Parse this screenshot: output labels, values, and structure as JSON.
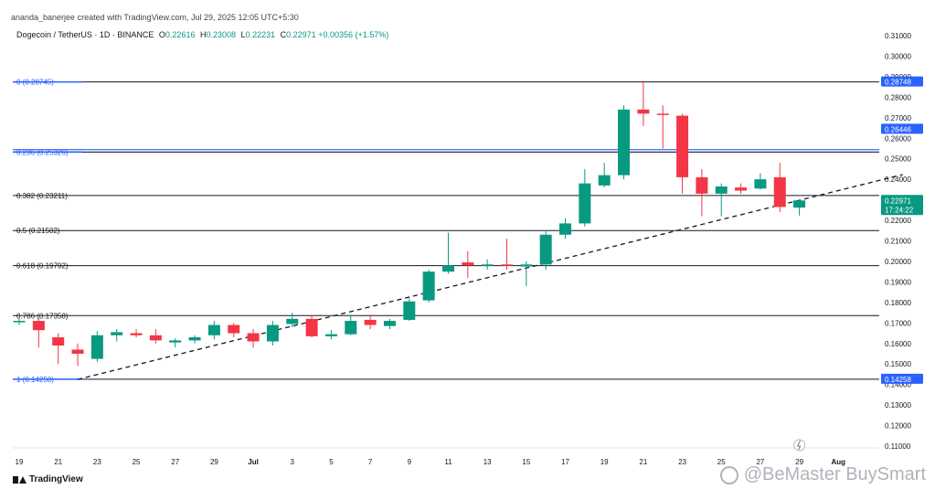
{
  "header": {
    "created_by": "ananda_banerjee created with TradingView.com, Jul 29, 2025 12:05 UTC+5:30"
  },
  "symbol": {
    "name": "Dogecoin / TetherUS · 1D · BINANCE",
    "open_label": "O",
    "open": "0.22616",
    "high_label": "H",
    "high": "0.23008",
    "low_label": "L",
    "low": "0.22231",
    "close_label": "C",
    "close": "0.22971",
    "change": "+0.00356 (+1.57%)"
  },
  "footer": {
    "brand": "TradingView",
    "watermark": "@BeMaster BuySmart"
  },
  "colors": {
    "up": "#089981",
    "down": "#f23645",
    "fib": "#131722",
    "fib_label_blue": "#2962ff"
  },
  "chart_data": {
    "type": "candlestick",
    "title": "Dogecoin / TetherUS · 1D · BINANCE",
    "y_axis": {
      "side": "right",
      "ylim": [
        0.105,
        0.315
      ],
      "ticks": [
        "0.31000",
        "0.30000",
        "0.29000",
        "0.28000",
        "0.27000",
        "0.26000",
        "0.25000",
        "0.24000",
        "0.23000",
        "0.22000",
        "0.21000",
        "0.20000",
        "0.19000",
        "0.18000",
        "0.17000",
        "0.16000",
        "0.15000",
        "0.14000",
        "0.13000",
        "0.12000",
        "0.11000"
      ]
    },
    "x_axis": {
      "ticks": [
        "19",
        "21",
        "23",
        "25",
        "27",
        "29",
        "Jul",
        "3",
        "5",
        "7",
        "9",
        "11",
        "13",
        "15",
        "17",
        "19",
        "21",
        "23",
        "25",
        "27",
        "29",
        "Aug"
      ],
      "tick_index": [
        0,
        2,
        4,
        6,
        8,
        10,
        12,
        14,
        16,
        18,
        20,
        22,
        24,
        26,
        28,
        30,
        32,
        34,
        36,
        38,
        40,
        42
      ]
    },
    "candles": [
      {
        "i": 0,
        "o": 0.1705,
        "h": 0.172,
        "l": 0.169,
        "c": 0.171
      },
      {
        "i": 1,
        "o": 0.171,
        "h": 0.1725,
        "l": 0.158,
        "c": 0.1665
      },
      {
        "i": 2,
        "o": 0.163,
        "h": 0.165,
        "l": 0.15,
        "c": 0.159
      },
      {
        "i": 3,
        "o": 0.157,
        "h": 0.16,
        "l": 0.149,
        "c": 0.155
      },
      {
        "i": 4,
        "o": 0.1525,
        "h": 0.166,
        "l": 0.151,
        "c": 0.164
      },
      {
        "i": 5,
        "o": 0.164,
        "h": 0.167,
        "l": 0.161,
        "c": 0.1655
      },
      {
        "i": 6,
        "o": 0.165,
        "h": 0.167,
        "l": 0.163,
        "c": 0.164
      },
      {
        "i": 7,
        "o": 0.164,
        "h": 0.167,
        "l": 0.16,
        "c": 0.1615
      },
      {
        "i": 8,
        "o": 0.1605,
        "h": 0.1625,
        "l": 0.158,
        "c": 0.1615
      },
      {
        "i": 9,
        "o": 0.1615,
        "h": 0.164,
        "l": 0.16,
        "c": 0.163
      },
      {
        "i": 10,
        "o": 0.164,
        "h": 0.171,
        "l": 0.162,
        "c": 0.169
      },
      {
        "i": 11,
        "o": 0.169,
        "h": 0.17,
        "l": 0.163,
        "c": 0.165
      },
      {
        "i": 12,
        "o": 0.165,
        "h": 0.167,
        "l": 0.158,
        "c": 0.161
      },
      {
        "i": 13,
        "o": 0.161,
        "h": 0.171,
        "l": 0.159,
        "c": 0.169
      },
      {
        "i": 14,
        "o": 0.1695,
        "h": 0.175,
        "l": 0.168,
        "c": 0.172
      },
      {
        "i": 15,
        "o": 0.172,
        "h": 0.174,
        "l": 0.163,
        "c": 0.1635
      },
      {
        "i": 16,
        "o": 0.1635,
        "h": 0.1665,
        "l": 0.162,
        "c": 0.1645
      },
      {
        "i": 17,
        "o": 0.1645,
        "h": 0.174,
        "l": 0.164,
        "c": 0.171
      },
      {
        "i": 18,
        "o": 0.1715,
        "h": 0.174,
        "l": 0.167,
        "c": 0.169
      },
      {
        "i": 19,
        "o": 0.1685,
        "h": 0.172,
        "l": 0.167,
        "c": 0.171
      },
      {
        "i": 20,
        "o": 0.1715,
        "h": 0.182,
        "l": 0.171,
        "c": 0.1805
      },
      {
        "i": 21,
        "o": 0.181,
        "h": 0.196,
        "l": 0.18,
        "c": 0.195
      },
      {
        "i": 22,
        "o": 0.195,
        "h": 0.214,
        "l": 0.194,
        "c": 0.198
      },
      {
        "i": 23,
        "o": 0.1995,
        "h": 0.205,
        "l": 0.192,
        "c": 0.198
      },
      {
        "i": 24,
        "o": 0.198,
        "h": 0.201,
        "l": 0.196,
        "c": 0.1985
      },
      {
        "i": 25,
        "o": 0.1985,
        "h": 0.211,
        "l": 0.196,
        "c": 0.198
      },
      {
        "i": 26,
        "o": 0.1975,
        "h": 0.2,
        "l": 0.188,
        "c": 0.1985
      },
      {
        "i": 27,
        "o": 0.1985,
        "h": 0.215,
        "l": 0.196,
        "c": 0.213
      },
      {
        "i": 28,
        "o": 0.213,
        "h": 0.221,
        "l": 0.211,
        "c": 0.2185
      },
      {
        "i": 29,
        "o": 0.2185,
        "h": 0.245,
        "l": 0.217,
        "c": 0.238
      },
      {
        "i": 30,
        "o": 0.237,
        "h": 0.248,
        "l": 0.236,
        "c": 0.242
      },
      {
        "i": 31,
        "o": 0.242,
        "h": 0.276,
        "l": 0.24,
        "c": 0.274
      },
      {
        "i": 32,
        "o": 0.274,
        "h": 0.288,
        "l": 0.266,
        "c": 0.272
      },
      {
        "i": 33,
        "o": 0.272,
        "h": 0.276,
        "l": 0.255,
        "c": 0.2715
      },
      {
        "i": 34,
        "o": 0.271,
        "h": 0.272,
        "l": 0.233,
        "c": 0.241
      },
      {
        "i": 35,
        "o": 0.241,
        "h": 0.245,
        "l": 0.222,
        "c": 0.233
      },
      {
        "i": 36,
        "o": 0.233,
        "h": 0.238,
        "l": 0.222,
        "c": 0.2365
      },
      {
        "i": 37,
        "o": 0.236,
        "h": 0.238,
        "l": 0.233,
        "c": 0.2345
      },
      {
        "i": 38,
        "o": 0.2355,
        "h": 0.243,
        "l": 0.235,
        "c": 0.24
      },
      {
        "i": 39,
        "o": 0.241,
        "h": 0.248,
        "l": 0.224,
        "c": 0.2265
      },
      {
        "i": 40,
        "o": 0.2262,
        "h": 0.2301,
        "l": 0.2223,
        "c": 0.2297
      }
    ],
    "fib_levels": [
      {
        "ratio": "0",
        "price": 0.28745,
        "label": "0 (0.28745)",
        "tag": "0.28748",
        "tag_color": "#2962ff"
      },
      {
        "ratio": "0.236",
        "price": 0.25326,
        "label": "0.236 (0.25326)",
        "tag": "0.26446",
        "tag_color": "#2962ff",
        "band": 0.2545
      },
      {
        "ratio": "0.382",
        "price": 0.23211,
        "label": "0.382 (0.23211)"
      },
      {
        "ratio": "0.5",
        "price": 0.21502,
        "label": "0.5 (0.21502)"
      },
      {
        "ratio": "0.618",
        "price": 0.19792,
        "label": "0.618 (0.19792)"
      },
      {
        "ratio": "0.786",
        "price": 0.17358,
        "label": "0.786 (0.17358)"
      },
      {
        "ratio": "1",
        "price": 0.14258,
        "label": "1 (0.14258)",
        "tag": "0.14258",
        "tag_color": "#2962ff"
      }
    ],
    "last_price_tag": {
      "price": 0.22971,
      "label": "0.22971",
      "countdown": "17:24:22",
      "color": "#089981"
    },
    "trendline": {
      "from": {
        "i": 3,
        "p": 0.1425
      },
      "to": {
        "i": 45.3,
        "p": 0.2423
      },
      "style": "dashed"
    }
  }
}
